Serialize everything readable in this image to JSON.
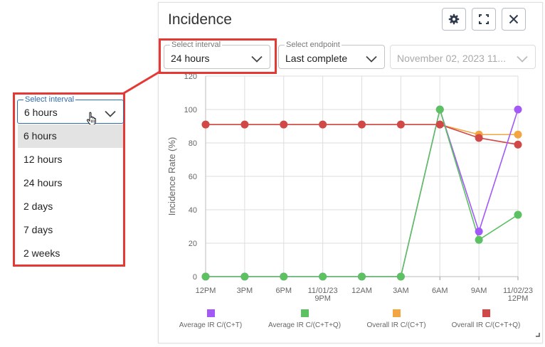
{
  "panel": {
    "title": "Incidence",
    "buttons": {
      "settings_icon": "gear-icon",
      "expand_icon": "fullscreen-icon",
      "close_icon": "close-icon"
    }
  },
  "controls": {
    "interval": {
      "label": "Select interval",
      "value": "24 hours"
    },
    "endpoint": {
      "label": "Select endpoint",
      "value": "Last complete"
    },
    "date": {
      "value": "November 02, 2023 11..."
    }
  },
  "dropdown": {
    "label": "Select interval",
    "value": "6 hours",
    "options": [
      "6 hours",
      "12 hours",
      "24 hours",
      "2 days",
      "7 days",
      "2 weeks"
    ],
    "selected_index": 0
  },
  "colors": {
    "highlight": "#e53935",
    "purple": "#a259f7",
    "green": "#5cc160",
    "orange": "#f2a541",
    "red": "#d04848",
    "grid": "#dddddd",
    "axis_text": "#666666"
  },
  "chart_data": {
    "type": "line",
    "ylabel": "Incidence Rate (%)",
    "ylim": [
      0,
      120
    ],
    "yticks": [
      0,
      20,
      40,
      60,
      80,
      100,
      120
    ],
    "x_tick_labels": [
      [
        "12PM"
      ],
      [
        "3PM"
      ],
      [
        "6PM"
      ],
      [
        "11/01/23",
        "9PM"
      ],
      [
        "12AM"
      ],
      [
        "3AM"
      ],
      [
        "6AM"
      ],
      [
        "9AM"
      ],
      [
        "11/02/23",
        "12PM"
      ]
    ],
    "grid": true,
    "legend_position": "bottom",
    "series": [
      {
        "name": "Average IR C/(C+T)",
        "color": "#a259f7",
        "values": [
          0,
          0,
          0,
          0,
          0,
          0,
          100,
          27,
          100
        ],
        "marker": "circle"
      },
      {
        "name": "Average IR C/(C+T+Q)",
        "color": "#5cc160",
        "values": [
          0,
          0,
          0,
          0,
          0,
          0,
          100,
          22,
          37
        ],
        "marker": "circle"
      },
      {
        "name": "Overall IR C/(C+T)",
        "color": "#f2a541",
        "values": [
          91,
          91,
          91,
          91,
          91,
          91,
          91,
          85,
          85
        ],
        "marker": "circle"
      },
      {
        "name": "Overall IR C/(C+T+Q)",
        "color": "#d04848",
        "values": [
          91,
          91,
          91,
          91,
          91,
          91,
          91,
          83,
          79
        ],
        "marker": "circle"
      }
    ]
  }
}
